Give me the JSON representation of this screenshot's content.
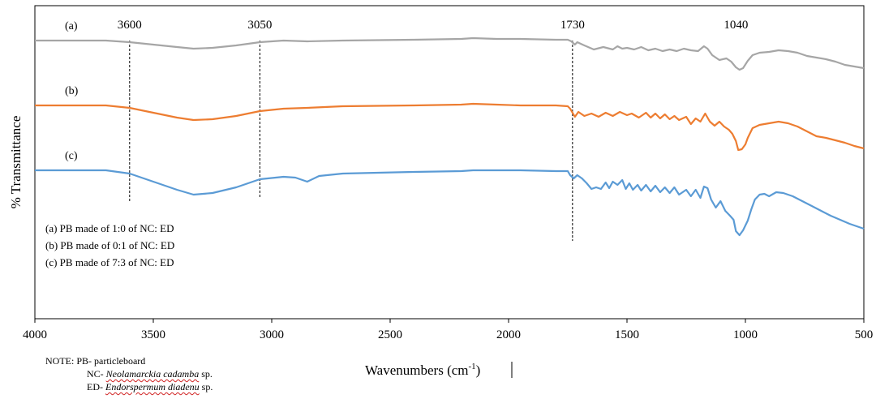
{
  "chart_data": {
    "type": "line",
    "xlabel": "Wavenumbers (cm",
    "xlabel_sup": "-1",
    "xlabel_tail": ")",
    "ylabel": "% Transmittance",
    "xlim": [
      4000,
      500
    ],
    "x_reversed": true,
    "x_ticks": [
      4000,
      3500,
      3000,
      2500,
      2000,
      1500,
      1000,
      500
    ],
    "x_tick_labels": [
      "4000",
      "3500",
      "3000",
      "2500",
      "2000",
      "1500",
      "1000",
      "500"
    ],
    "grid": false,
    "y_scale": "relative (no numeric ticks)",
    "series": [
      {
        "name": "(a)",
        "color": "#a6a6a6",
        "points": [
          [
            4000,
            50
          ],
          [
            3700,
            50
          ],
          [
            3600,
            52
          ],
          [
            3500,
            55
          ],
          [
            3400,
            58
          ],
          [
            3330,
            60
          ],
          [
            3250,
            59
          ],
          [
            3150,
            56
          ],
          [
            3050,
            52
          ],
          [
            2950,
            50
          ],
          [
            2850,
            51
          ],
          [
            2700,
            50
          ],
          [
            2400,
            49
          ],
          [
            2200,
            48
          ],
          [
            2150,
            47
          ],
          [
            2050,
            48
          ],
          [
            1950,
            48
          ],
          [
            1800,
            49
          ],
          [
            1750,
            49
          ],
          [
            1735,
            51
          ],
          [
            1720,
            55
          ],
          [
            1710,
            52
          ],
          [
            1680,
            56
          ],
          [
            1640,
            61
          ],
          [
            1600,
            58
          ],
          [
            1560,
            61
          ],
          [
            1540,
            57
          ],
          [
            1520,
            60
          ],
          [
            1500,
            59
          ],
          [
            1470,
            61
          ],
          [
            1440,
            58
          ],
          [
            1410,
            62
          ],
          [
            1380,
            60
          ],
          [
            1350,
            63
          ],
          [
            1320,
            61
          ],
          [
            1290,
            63
          ],
          [
            1260,
            60
          ],
          [
            1230,
            62
          ],
          [
            1200,
            63
          ],
          [
            1175,
            57
          ],
          [
            1160,
            60
          ],
          [
            1140,
            68
          ],
          [
            1110,
            74
          ],
          [
            1080,
            72
          ],
          [
            1060,
            76
          ],
          [
            1040,
            83
          ],
          [
            1025,
            86
          ],
          [
            1010,
            84
          ],
          [
            990,
            75
          ],
          [
            970,
            68
          ],
          [
            940,
            65
          ],
          [
            900,
            64
          ],
          [
            860,
            62
          ],
          [
            820,
            63
          ],
          [
            780,
            65
          ],
          [
            740,
            69
          ],
          [
            700,
            71
          ],
          [
            660,
            73
          ],
          [
            620,
            76
          ],
          [
            580,
            80
          ],
          [
            540,
            82
          ],
          [
            500,
            84
          ]
        ]
      },
      {
        "name": "(b)",
        "color": "#ed7d31",
        "points": [
          [
            4000,
            130
          ],
          [
            3700,
            130
          ],
          [
            3600,
            133
          ],
          [
            3500,
            139
          ],
          [
            3400,
            145
          ],
          [
            3330,
            148
          ],
          [
            3250,
            147
          ],
          [
            3150,
            143
          ],
          [
            3050,
            137
          ],
          [
            2950,
            134
          ],
          [
            2850,
            133
          ],
          [
            2700,
            131
          ],
          [
            2400,
            130
          ],
          [
            2200,
            129
          ],
          [
            2150,
            128
          ],
          [
            2050,
            129
          ],
          [
            1950,
            130
          ],
          [
            1800,
            130
          ],
          [
            1750,
            131
          ],
          [
            1740,
            134
          ],
          [
            1720,
            144
          ],
          [
            1705,
            138
          ],
          [
            1680,
            143
          ],
          [
            1650,
            140
          ],
          [
            1620,
            144
          ],
          [
            1590,
            139
          ],
          [
            1560,
            143
          ],
          [
            1530,
            138
          ],
          [
            1500,
            142
          ],
          [
            1480,
            140
          ],
          [
            1450,
            145
          ],
          [
            1420,
            139
          ],
          [
            1400,
            145
          ],
          [
            1380,
            140
          ],
          [
            1360,
            146
          ],
          [
            1340,
            141
          ],
          [
            1320,
            147
          ],
          [
            1300,
            143
          ],
          [
            1280,
            148
          ],
          [
            1250,
            144
          ],
          [
            1230,
            153
          ],
          [
            1210,
            146
          ],
          [
            1190,
            150
          ],
          [
            1170,
            140
          ],
          [
            1150,
            150
          ],
          [
            1130,
            155
          ],
          [
            1110,
            150
          ],
          [
            1090,
            156
          ],
          [
            1070,
            160
          ],
          [
            1055,
            165
          ],
          [
            1040,
            174
          ],
          [
            1030,
            185
          ],
          [
            1015,
            184
          ],
          [
            1000,
            178
          ],
          [
            990,
            170
          ],
          [
            970,
            158
          ],
          [
            940,
            154
          ],
          [
            900,
            152
          ],
          [
            860,
            150
          ],
          [
            820,
            152
          ],
          [
            780,
            156
          ],
          [
            740,
            162
          ],
          [
            700,
            168
          ],
          [
            660,
            170
          ],
          [
            620,
            173
          ],
          [
            580,
            176
          ],
          [
            540,
            180
          ],
          [
            500,
            183
          ]
        ]
      },
      {
        "name": "(c)",
        "color": "#5b9bd5",
        "points": [
          [
            4000,
            210
          ],
          [
            3700,
            210
          ],
          [
            3600,
            214
          ],
          [
            3500,
            224
          ],
          [
            3400,
            234
          ],
          [
            3330,
            240
          ],
          [
            3250,
            238
          ],
          [
            3150,
            231
          ],
          [
            3050,
            221
          ],
          [
            2950,
            218
          ],
          [
            2900,
            219
          ],
          [
            2850,
            224
          ],
          [
            2800,
            217
          ],
          [
            2700,
            214
          ],
          [
            2400,
            212
          ],
          [
            2200,
            211
          ],
          [
            2150,
            210
          ],
          [
            2050,
            210
          ],
          [
            1950,
            210
          ],
          [
            1800,
            211
          ],
          [
            1750,
            211
          ],
          [
            1740,
            216
          ],
          [
            1725,
            220
          ],
          [
            1710,
            216
          ],
          [
            1690,
            220
          ],
          [
            1670,
            226
          ],
          [
            1650,
            233
          ],
          [
            1630,
            231
          ],
          [
            1610,
            233
          ],
          [
            1590,
            225
          ],
          [
            1575,
            232
          ],
          [
            1560,
            224
          ],
          [
            1540,
            228
          ],
          [
            1520,
            222
          ],
          [
            1505,
            233
          ],
          [
            1490,
            226
          ],
          [
            1475,
            234
          ],
          [
            1455,
            228
          ],
          [
            1440,
            235
          ],
          [
            1420,
            228
          ],
          [
            1400,
            236
          ],
          [
            1380,
            229
          ],
          [
            1360,
            237
          ],
          [
            1340,
            231
          ],
          [
            1320,
            238
          ],
          [
            1300,
            231
          ],
          [
            1280,
            240
          ],
          [
            1250,
            234
          ],
          [
            1230,
            242
          ],
          [
            1210,
            234
          ],
          [
            1190,
            244
          ],
          [
            1175,
            230
          ],
          [
            1160,
            232
          ],
          [
            1145,
            246
          ],
          [
            1125,
            256
          ],
          [
            1105,
            248
          ],
          [
            1085,
            260
          ],
          [
            1065,
            266
          ],
          [
            1050,
            271
          ],
          [
            1040,
            285
          ],
          [
            1025,
            290
          ],
          [
            1010,
            284
          ],
          [
            990,
            272
          ],
          [
            975,
            258
          ],
          [
            960,
            246
          ],
          [
            940,
            240
          ],
          [
            920,
            239
          ],
          [
            900,
            242
          ],
          [
            870,
            237
          ],
          [
            840,
            238
          ],
          [
            800,
            242
          ],
          [
            760,
            248
          ],
          [
            720,
            254
          ],
          [
            680,
            260
          ],
          [
            640,
            266
          ],
          [
            600,
            271
          ],
          [
            560,
            276
          ],
          [
            530,
            279
          ],
          [
            500,
            282
          ]
        ]
      }
    ],
    "annotations": [
      {
        "label": "3600",
        "x": 3600
      },
      {
        "label": "3050",
        "x": 3050
      },
      {
        "label": "1730",
        "x": 1730
      },
      {
        "label": "1040",
        "x": 1040
      }
    ],
    "legend": {
      "placement": "lower-left inside",
      "items": [
        "(a) PB made of 1:0 of NC: ED",
        "(b) PB made of 0:1 of NC: ED",
        "(c) PB made of 7:3 of NC: ED"
      ]
    }
  },
  "note": {
    "line1": "NOTE: PB- particleboard",
    "line2_prefix": "NC- ",
    "line2_italic": "Neolamarckia cadamba",
    "line2_suffix": " sp.",
    "line3_prefix": "ED- ",
    "line3_italic": "Endorspermum diadenu",
    "line3_suffix": " sp."
  }
}
